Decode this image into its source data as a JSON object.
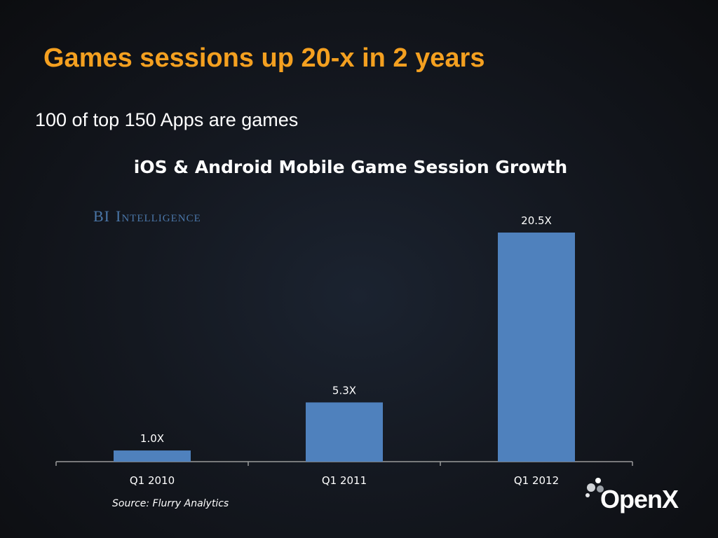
{
  "slide": {
    "title": "Games sessions up 20-x in 2 years",
    "subtitle": "100 of top 150 Apps are games",
    "source": "Source: Flurry Analytics",
    "brand_logo_text": "OpenX"
  },
  "watermark": {
    "bi": "BI",
    "intelligence": "Intelligence"
  },
  "colors": {
    "title": "#f4a020",
    "bar": "#4f81bd",
    "text": "#ffffff",
    "bi_logo": "#4a76a8"
  },
  "chart_data": {
    "type": "bar",
    "title": "iOS & Android Mobile Game Session Growth",
    "categories": [
      "Q1 2010",
      "Q1 2011",
      "Q1 2012"
    ],
    "values": [
      1.0,
      5.3,
      20.5
    ],
    "data_labels": [
      "1.0X",
      "5.3X",
      "20.5X"
    ],
    "xlabel": "",
    "ylabel": "",
    "ylim": [
      0,
      21
    ],
    "y_axis_visible": false,
    "grid": false,
    "legend": "none"
  }
}
